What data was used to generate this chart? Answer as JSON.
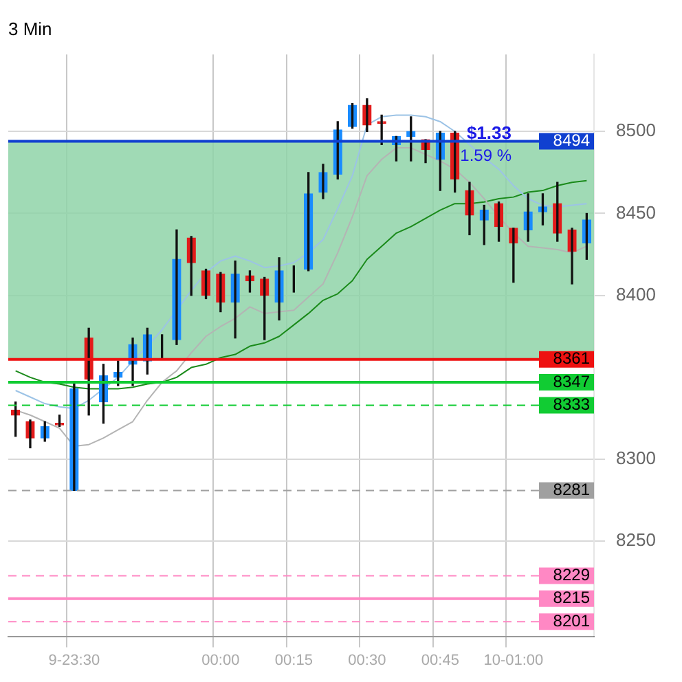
{
  "chart_data": {
    "type": "candlestick",
    "title": "3 Min",
    "categories": [
      null,
      null,
      null,
      null,
      "9-23:30",
      null,
      null,
      null,
      null,
      null,
      null,
      null,
      null,
      null,
      "00:00",
      null,
      null,
      null,
      null,
      "00:15",
      null,
      null,
      null,
      null,
      "00:30",
      null,
      null,
      null,
      null,
      "00:45",
      null,
      null,
      null,
      null,
      "10-01:00",
      null,
      null,
      null,
      null,
      null
    ],
    "ohlc": [
      [
        8330,
        8335,
        8314,
        8327
      ],
      [
        8323,
        8324,
        8307,
        8313
      ],
      [
        8313,
        8323,
        8311,
        8320
      ],
      [
        8322,
        8327,
        8320,
        8321
      ],
      [
        8281,
        8346,
        8281,
        8343
      ],
      [
        8374,
        8380,
        8327,
        8349
      ],
      [
        8335,
        8358,
        8322,
        8351
      ],
      [
        8350,
        8360,
        8345,
        8353
      ],
      [
        8358,
        8374,
        8345,
        8370
      ],
      [
        8360,
        8380,
        8352,
        8376
      ],
      [
        8370,
        8376,
        8362,
        8370
      ],
      [
        8373,
        8440,
        8370,
        8422
      ],
      [
        8435,
        8436,
        8400,
        8420
      ],
      [
        8415,
        8416,
        8398,
        8400
      ],
      [
        8413,
        8414,
        8390,
        8396
      ],
      [
        8396,
        8421,
        8374,
        8413
      ],
      [
        8412,
        8415,
        8402,
        8409
      ],
      [
        8410,
        8411,
        8373,
        8400
      ],
      [
        8396,
        8423,
        8385,
        8415
      ],
      [
        8412,
        8418,
        8402,
        8412
      ],
      [
        8416,
        8475,
        8415,
        8462
      ],
      [
        8463,
        8480,
        8459,
        8475
      ],
      [
        8474,
        8506,
        8471,
        8501
      ],
      [
        8503,
        8517,
        8502,
        8516
      ],
      [
        8516,
        8520,
        8500,
        8504
      ],
      [
        8506,
        8510,
        8492,
        8505
      ],
      [
        8492,
        8497,
        8482,
        8497
      ],
      [
        8497,
        8509,
        8482,
        8500
      ],
      [
        8495,
        8495,
        8481,
        8489
      ],
      [
        8483,
        8500,
        8464,
        8499
      ],
      [
        8499,
        8500,
        8463,
        8471
      ],
      [
        8464,
        8469,
        8437,
        8449
      ],
      [
        8446,
        8455,
        8431,
        8452
      ],
      [
        8456,
        8457,
        8433,
        8442
      ],
      [
        8441,
        8441,
        8408,
        8432
      ],
      [
        8440,
        8462,
        8433,
        8451
      ],
      [
        8451,
        8462,
        8443,
        8454
      ],
      [
        8456,
        8469,
        8433,
        8438
      ],
      [
        8440,
        8441,
        8407,
        8427
      ],
      [
        8432,
        8450,
        8422,
        8446
      ]
    ],
    "colors": [
      "#e31b1b",
      "#e31b1b",
      "#1a8cff",
      "#e31b1b",
      "#1a8cff",
      "#e31b1b",
      "#1a8cff",
      "#1a8cff",
      "#1a8cff",
      "#1a8cff",
      "#222222",
      "#1a8cff",
      "#e31b1b",
      "#e31b1b",
      "#e31b1b",
      "#1a8cff",
      "#e31b1b",
      "#e31b1b",
      "#1a8cff",
      "#e31b1b",
      "#1a8cff",
      "#1a8cff",
      "#1a8cff",
      "#1a8cff",
      "#e31b1b",
      "#e31b1b",
      "#1a8cff",
      "#1a8cff",
      "#e31b1b",
      "#1a8cff",
      "#e31b1b",
      "#e31b1b",
      "#1a8cff",
      "#e31b1b",
      "#e31b1b",
      "#1a8cff",
      "#1a8cff",
      "#e31b1b",
      "#e31b1b",
      "#1a8cff"
    ],
    "series": [
      {
        "type": "line",
        "color": "#9cc3e6",
        "values": [
          8342,
          8338,
          8334,
          8332,
          8331,
          8336,
          8343,
          8350,
          8360,
          8369,
          8379,
          8391,
          8403,
          8414,
          8421,
          8424,
          8421,
          8417,
          8418,
          8420,
          8426,
          8434,
          8453,
          8473,
          8504,
          8509,
          8510,
          8510,
          8509,
          8506,
          8500,
          8492,
          8484,
          8477,
          8467,
          8459,
          8455,
          8454,
          8455,
          8456
        ]
      },
      {
        "type": "line",
        "color": "#b4b4b4",
        "values": [
          8330,
          8327,
          8323,
          8319,
          8308,
          8309,
          8313,
          8318,
          8323,
          8336,
          8347,
          8354,
          8365,
          8375,
          8381,
          8386,
          8393,
          8389,
          8390,
          8391,
          8399,
          8407,
          8426,
          8448,
          8473,
          8483,
          8490,
          8490,
          8486,
          8482,
          8477,
          8469,
          8459,
          8448,
          8438,
          8430,
          8429,
          8428,
          8426,
          8430
        ]
      },
      {
        "type": "line",
        "color": "#1a8a1a",
        "values": [
          8354,
          8350,
          8347,
          8346,
          8344,
          8343,
          8343,
          8343,
          8344,
          8346,
          8347,
          8350,
          8356,
          8358,
          8362,
          8364,
          8369,
          8371,
          8375,
          8382,
          8389,
          8397,
          8401,
          8409,
          8422,
          8430,
          8438,
          8442,
          8447,
          8452,
          8456,
          8456,
          8457,
          8459,
          8460,
          8463,
          8464,
          8467,
          8469,
          8470
        ]
      }
    ],
    "ylim": [
      8192,
      8547
    ],
    "yticks": [
      8250,
      8300,
      8400,
      8450,
      8500
    ],
    "grid": true,
    "legend": false,
    "ref_lines": [
      {
        "axis": "y",
        "value": 8494,
        "label": "8494",
        "color": "#1040d0",
        "line_style": "solid"
      },
      {
        "axis": "y",
        "value": 8361,
        "label": "8361",
        "color": "#ee1111",
        "line_style": "solid"
      },
      {
        "axis": "y",
        "value": 8347,
        "label": "8347",
        "color": "#11cc33",
        "line_style": "solid"
      },
      {
        "axis": "y",
        "value": 8333,
        "label": "8333",
        "color": "#11cc33",
        "line_style": "dashed"
      },
      {
        "axis": "y",
        "value": 8281,
        "label": "8281",
        "color": "#a0a0a0",
        "line_style": "dashed"
      },
      {
        "axis": "y",
        "value": 8229,
        "label": "8229",
        "color": "#ff88c4",
        "line_style": "dashed"
      },
      {
        "axis": "y",
        "value": 8215,
        "label": "8215",
        "color": "#ff88c4",
        "line_style": "solid"
      },
      {
        "axis": "y",
        "value": 8201,
        "label": "8201",
        "color": "#ff88c4",
        "line_style": "dashed"
      }
    ],
    "bands": [
      {
        "axis": "y",
        "from": 8361,
        "to": 8494,
        "color": "#8fd4a8"
      }
    ],
    "annotations": [
      "$1.33",
      "1.59 %"
    ]
  }
}
